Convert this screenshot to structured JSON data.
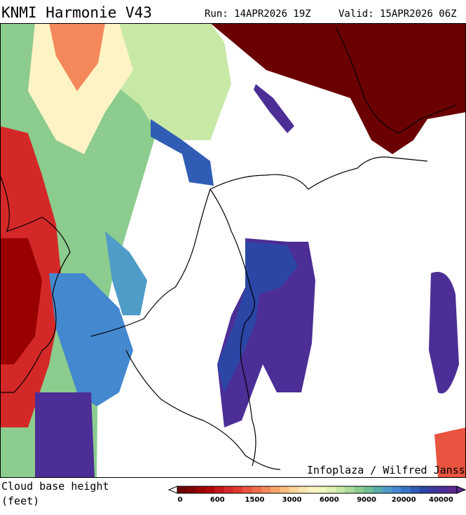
{
  "header": {
    "title": "KNMI Harmonie V43",
    "run": "Run: 14APR2026 19Z",
    "valid": "Valid: 15APR2026 06Z"
  },
  "credit": "Infoplaza / Wilfred Janssen",
  "legend": {
    "title": [
      "Cloud base height",
      "(feet)"
    ],
    "labels": [
      "0",
      "600",
      "1500",
      "3000",
      "6000",
      "9000",
      "20000",
      "40000"
    ],
    "colors": [
      "#6a0000",
      "#800000",
      "#990000",
      "#b00808",
      "#c41818",
      "#d42828",
      "#e03a30",
      "#e85440",
      "#f06c4c",
      "#f4885a",
      "#f8a46a",
      "#fbbe80",
      "#fcd49a",
      "#fde6b0",
      "#fef3c4",
      "#f2f7c0",
      "#e0f1b2",
      "#c8e8a6",
      "#aadc9a",
      "#8ccc8e",
      "#6ebf92",
      "#5aaeaa",
      "#509cc8",
      "#4488d0",
      "#3872c4",
      "#305cb6",
      "#2c46a6",
      "#3c389e",
      "#4c2e96",
      "#5c2a8e"
    ]
  }
}
